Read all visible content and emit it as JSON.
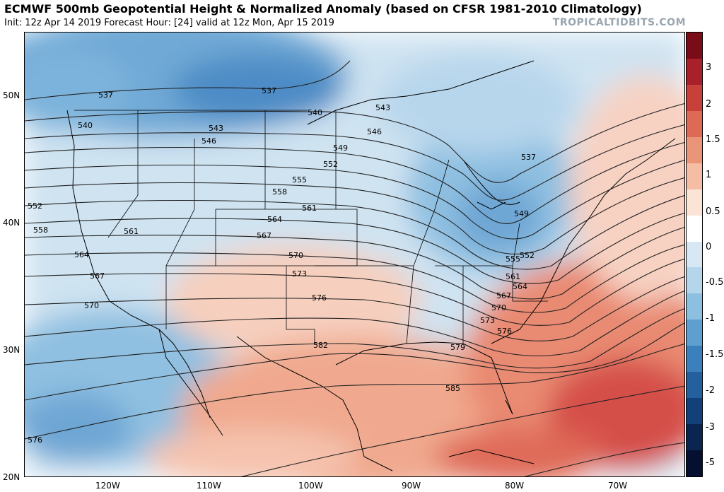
{
  "header": {
    "title": "ECMWF 500mb Geopotential Height & Normalized Anomaly (based on CFSR 1981-2010 Climatology)",
    "subtitle": "Init: 12z Apr 14 2019   Forecast Hour: [24]   valid at 12z Mon, Apr 15 2019",
    "brand": "TROPICALTIDBITS.COM"
  },
  "axes": {
    "lat_labels": [
      "50N",
      "40N",
      "30N",
      "20N"
    ],
    "lon_labels": [
      "120W",
      "110W",
      "100W",
      "90W",
      "80W",
      "70W"
    ]
  },
  "colorbar": {
    "labels": [
      "3",
      "2",
      "1.5",
      "1",
      "0.5",
      "0",
      "-0.5",
      "-1",
      "-1.5",
      "-2",
      "-3",
      "-5"
    ],
    "colors": [
      "#7a0c18",
      "#a8202a",
      "#c8403a",
      "#dc6a55",
      "#ea9478",
      "#f4bda4",
      "#fbe3d6",
      "#ffffff",
      "#d7e8f4",
      "#b5d5ea",
      "#8dc0e0",
      "#5f9fd0",
      "#3c7fbd",
      "#245f9e",
      "#13407a",
      "#0a2550",
      "#050f30"
    ]
  },
  "contours": [
    {
      "label": "537"
    },
    {
      "label": "540"
    },
    {
      "label": "543"
    },
    {
      "label": "546"
    },
    {
      "label": "549"
    },
    {
      "label": "552"
    },
    {
      "label": "555"
    },
    {
      "label": "558"
    },
    {
      "label": "561"
    },
    {
      "label": "564"
    },
    {
      "label": "567"
    },
    {
      "label": "570"
    },
    {
      "label": "573"
    },
    {
      "label": "576"
    },
    {
      "label": "579"
    },
    {
      "label": "582"
    },
    {
      "label": "585"
    }
  ]
}
